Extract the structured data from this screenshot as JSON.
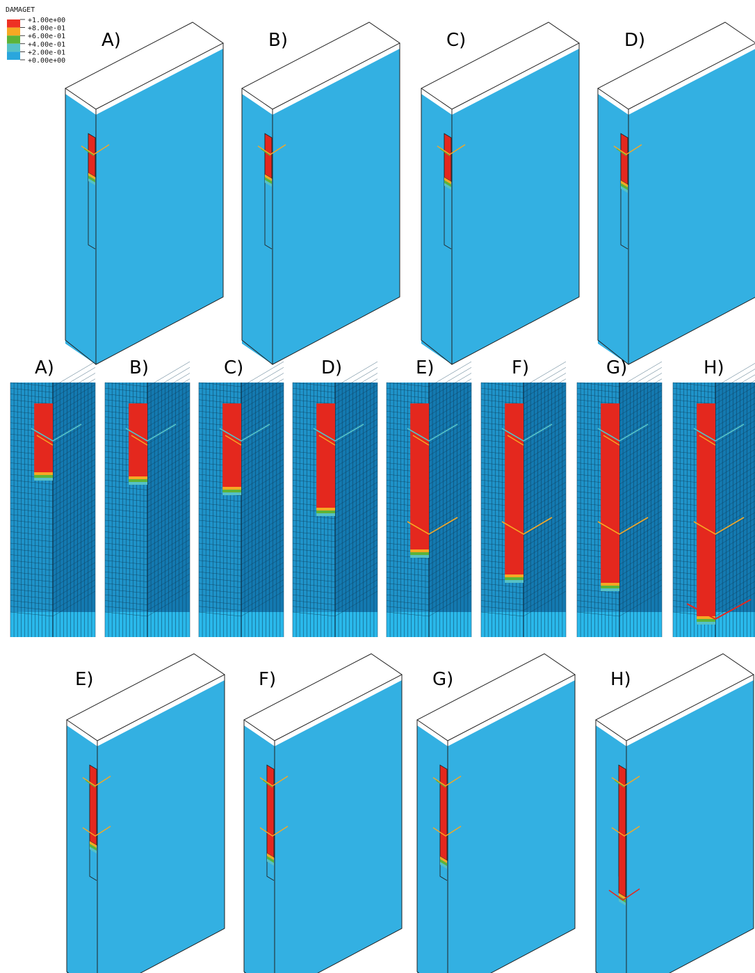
{
  "legend": {
    "title": "DAMAGET",
    "entries": [
      {
        "label": "+1.00e+00",
        "color": "#ee3124"
      },
      {
        "label": "+8.00e-01",
        "color": "#f7a823"
      },
      {
        "label": "+6.00e-01",
        "color": "#5cb338"
      },
      {
        "label": "+4.00e-01",
        "color": "#56c1c6"
      },
      {
        "label": "+2.00e-01",
        "color": "#2aa6dd"
      },
      {
        "label": "+0.00e+00",
        "color": ""
      }
    ]
  },
  "colors": {
    "body": "#33b0e2",
    "mesh": "#1f93c9",
    "mesh_dark": "#1479b0",
    "damage": "#e4281e",
    "orange": "#f7a823",
    "green": "#5cb338",
    "cyan": "#56c1c6",
    "top": "#ffffff",
    "edge": "#222222"
  },
  "top_row": [
    {
      "label": "A)",
      "crack_length": 0.12
    },
    {
      "label": "B)",
      "crack_length": 0.13
    },
    {
      "label": "C)",
      "crack_length": 0.15
    },
    {
      "label": "D)",
      "crack_length": 0.17
    }
  ],
  "middle_row": [
    {
      "label": "A)",
      "damage_extent": 0.13
    },
    {
      "label": "B)",
      "damage_extent": 0.15
    },
    {
      "label": "C)",
      "damage_extent": 0.2
    },
    {
      "label": "D)",
      "damage_extent": 0.3
    },
    {
      "label": "E)",
      "damage_extent": 0.5
    },
    {
      "label": "F)",
      "damage_extent": 0.62
    },
    {
      "label": "G)",
      "damage_extent": 0.66
    },
    {
      "label": "H)",
      "damage_extent": 0.9
    }
  ],
  "bottom_row": [
    {
      "label": "E)",
      "crack_length": 0.36
    },
    {
      "label": "F)",
      "crack_length": 0.44
    },
    {
      "label": "G)",
      "crack_length": 0.46
    },
    {
      "label": "H)",
      "crack_length": 0.7
    }
  ]
}
